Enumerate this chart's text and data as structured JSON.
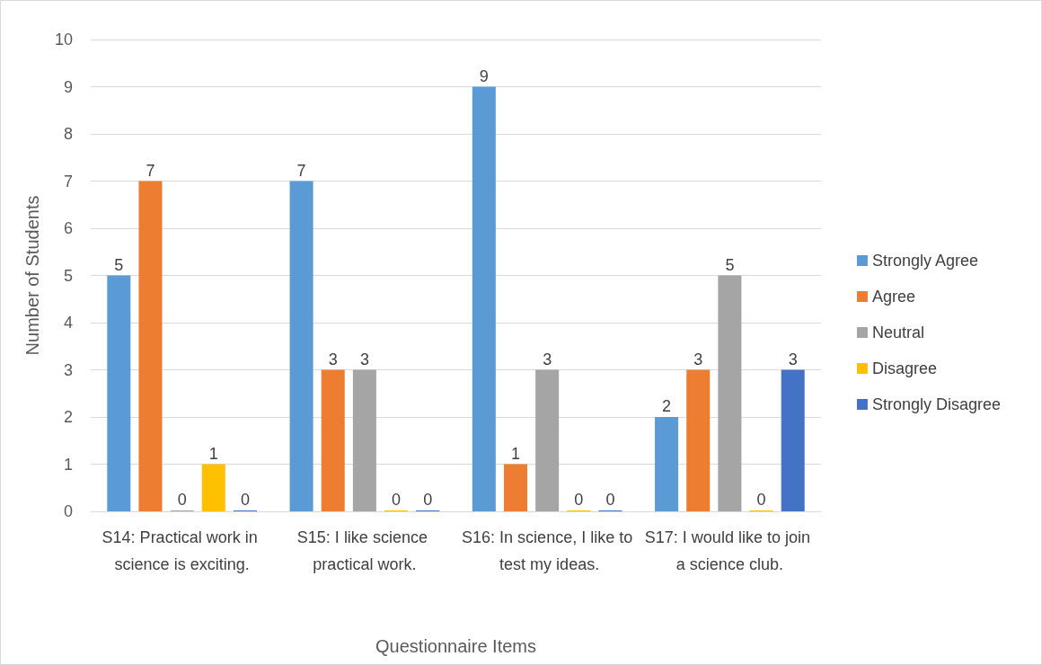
{
  "chart_data": {
    "type": "bar",
    "xlabel": "Questionnaire Items",
    "ylabel": "Number of Students",
    "categories": [
      "S14: Practical work in science is exciting.",
      "S15: I like science practical work.",
      "S16: In science, I like to test my ideas.",
      "S17: I would like to join a science club."
    ],
    "series": [
      {
        "name": "Strongly Agree",
        "color": "#5b9bd5",
        "values": [
          5,
          7,
          9,
          2
        ]
      },
      {
        "name": "Agree",
        "color": "#ed7d31",
        "values": [
          7,
          3,
          1,
          3
        ]
      },
      {
        "name": "Neutral",
        "color": "#a5a5a5",
        "values": [
          0,
          3,
          3,
          5
        ]
      },
      {
        "name": "Disagree",
        "color": "#ffc000",
        "values": [
          1,
          0,
          0,
          0
        ]
      },
      {
        "name": "Strongly Disagree",
        "color": "#4472c4",
        "values": [
          0,
          0,
          0,
          3
        ]
      }
    ],
    "ylim": [
      0,
      10
    ],
    "yticks": [
      0,
      1,
      2,
      3,
      4,
      5,
      6,
      7,
      8,
      9,
      10
    ],
    "grid": "y",
    "legend": "right",
    "data_labels": true
  }
}
